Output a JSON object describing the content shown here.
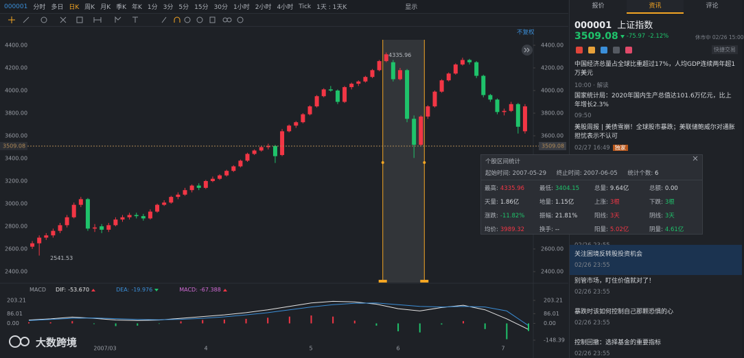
{
  "toolbar": {
    "symbol": "000001",
    "periods": [
      "分时",
      "多日",
      "日K",
      "周K",
      "月K",
      "季K",
      "年K",
      "1分",
      "3分",
      "5分",
      "15分",
      "30分",
      "1小时",
      "2小时",
      "4小时",
      "Tick"
    ],
    "range_select": "1天 : 1天K",
    "display": "显示"
  },
  "chart_data": {
    "type": "candlestick",
    "adjust": "不复权",
    "up_color": "#f23645",
    "down_color": "#1fc36b",
    "candles": [
      [
        2620,
        2670,
        2600,
        2650
      ],
      [
        2650,
        2720,
        2541.53,
        2700
      ],
      [
        2700,
        2740,
        2680,
        2720
      ],
      [
        2720,
        2780,
        2700,
        2760
      ],
      [
        2760,
        2830,
        2740,
        2810
      ],
      [
        2810,
        2900,
        2790,
        2880
      ],
      [
        2880,
        3010,
        2870,
        2990
      ],
      [
        2990,
        3060,
        2970,
        3040
      ],
      [
        3040,
        3050,
        2760,
        2780
      ],
      [
        2780,
        2820,
        2750,
        2790
      ],
      [
        2800,
        2820,
        2740,
        2770
      ],
      [
        2770,
        2830,
        2750,
        2810
      ],
      [
        2810,
        2880,
        2800,
        2860
      ],
      [
        2860,
        2900,
        2840,
        2880
      ],
      [
        2880,
        2920,
        2860,
        2900
      ],
      [
        2900,
        2920,
        2870,
        2890
      ],
      [
        2890,
        2910,
        2850,
        2870
      ],
      [
        2870,
        2950,
        2860,
        2930
      ],
      [
        2930,
        3000,
        2920,
        2990
      ],
      [
        2990,
        3030,
        2980,
        3010
      ],
      [
        3010,
        3070,
        3000,
        3060
      ],
      [
        3060,
        3100,
        3040,
        3080
      ],
      [
        3080,
        3140,
        3070,
        3120
      ],
      [
        3120,
        3170,
        3100,
        3160
      ],
      [
        3160,
        3180,
        3120,
        3140
      ],
      [
        3140,
        3210,
        3130,
        3200
      ],
      [
        3200,
        3240,
        3190,
        3220
      ],
      [
        3220,
        3260,
        3210,
        3250
      ],
      [
        3250,
        3300,
        3240,
        3290
      ],
      [
        3290,
        3340,
        3280,
        3330
      ],
      [
        3330,
        3390,
        3320,
        3380
      ],
      [
        3380,
        3450,
        3370,
        3440
      ],
      [
        3440,
        3480,
        3430,
        3470
      ],
      [
        3470,
        3510,
        3460,
        3500
      ],
      [
        3500,
        3530,
        3480,
        3510
      ],
      [
        3510,
        3520,
        3360,
        3420
      ],
      [
        3430,
        3660,
        3420,
        3640
      ],
      [
        3640,
        3700,
        3630,
        3690
      ],
      [
        3690,
        3730,
        3670,
        3720
      ],
      [
        3720,
        3800,
        3710,
        3790
      ],
      [
        3790,
        3870,
        3780,
        3860
      ],
      [
        3860,
        3960,
        3850,
        3950
      ],
      [
        3950,
        4020,
        3940,
        4010
      ],
      [
        4010,
        4040,
        3990,
        4000
      ],
      [
        4000,
        4010,
        3880,
        3900
      ],
      [
        3900,
        4040,
        3890,
        4030
      ],
      [
        4030,
        4070,
        4010,
        4060
      ],
      [
        4060,
        4090,
        4040,
        4080
      ],
      [
        4080,
        4130,
        4070,
        4120
      ],
      [
        4120,
        4190,
        4110,
        4180
      ],
      [
        4180,
        4270,
        4170,
        4260
      ],
      [
        4260,
        4335.96,
        4250,
        4320
      ],
      [
        4250,
        4270,
        4080,
        4100
      ],
      [
        4100,
        4200,
        4090,
        4180
      ],
      [
        4180,
        4190,
        3720,
        3750
      ],
      [
        3750,
        3780,
        3404.15,
        3520
      ],
      [
        3520,
        3780,
        3510,
        3770
      ],
      [
        3770,
        3870,
        3750,
        3860
      ],
      [
        3860,
        4000,
        3850,
        3990
      ],
      [
        3990,
        4100,
        3980,
        4090
      ],
      [
        4090,
        4160,
        4080,
        4150
      ],
      [
        4150,
        4240,
        4140,
        4230
      ],
      [
        4230,
        4290,
        4220,
        4270
      ],
      [
        4270,
        4280,
        4230,
        4250
      ],
      [
        4250,
        4260,
        4110,
        4130
      ],
      [
        4130,
        4140,
        3940,
        3960
      ],
      [
        3960,
        3970,
        3900,
        3920
      ],
      [
        3920,
        3930,
        3790,
        3810
      ],
      [
        3810,
        3840,
        3780,
        3820
      ],
      [
        3820,
        3900,
        3810,
        3880
      ],
      [
        3880,
        3890,
        3620,
        3680
      ],
      [
        3640,
        3880,
        3620,
        3860
      ]
    ],
    "ylim": [
      2400,
      4400
    ],
    "yticks": [
      {
        "value": 4400,
        "label": "4400.00"
      },
      {
        "value": 4200,
        "label": "4200.00"
      },
      {
        "value": 4000,
        "label": "4000.00"
      },
      {
        "value": 3800,
        "label": "3800.00"
      },
      {
        "value": 3600,
        "label": "3600.00"
      },
      {
        "value": 3400,
        "label": "3400.00"
      },
      {
        "value": 3200,
        "label": "3200.00"
      },
      {
        "value": 3000,
        "label": "3000.00"
      },
      {
        "value": 2800,
        "label": "2800.00"
      },
      {
        "value": 2600,
        "label": "2600.00"
      },
      {
        "value": 2400,
        "label": "2400.00"
      }
    ],
    "x_labels": [
      "2007/03",
      "4",
      "5",
      "6",
      "7"
    ]
  },
  "macd": {
    "type": "line",
    "title": "MACD",
    "ylim": [
      -148.39,
      203.21
    ],
    "yticks": [
      203.21,
      86.01,
      {
        "value": 0,
        "label": "0.00"
      },
      -148.39
    ],
    "series": [
      {
        "name": "DIF:",
        "color": "#e6e6e6",
        "values": [
          30,
          40,
          55,
          45,
          30,
          25,
          30,
          45,
          60,
          75,
          95,
          120,
          150,
          180,
          195,
          190,
          170,
          130,
          110,
          140,
          160,
          120,
          40,
          -53.67
        ],
        "latest_label": "-53.670"
      },
      {
        "name": "DEA:",
        "color": "#3b8fd9",
        "values": [
          25,
          35,
          45,
          48,
          42,
          35,
          32,
          36,
          45,
          58,
          75,
          95,
          120,
          145,
          165,
          178,
          180,
          165,
          150,
          145,
          150,
          145,
          110,
          -19.976
        ],
        "latest_label": "-19.976"
      },
      {
        "name": "MACD:",
        "color": "#d36bd6",
        "values": [
          10,
          10,
          20,
          -6,
          -24,
          -20,
          -4,
          18,
          30,
          34,
          40,
          50,
          60,
          70,
          60,
          24,
          -20,
          -70,
          -80,
          -10,
          20,
          -50,
          -140,
          -67.388
        ],
        "latest_label": "-67.388"
      }
    ]
  },
  "quote": {
    "tabs": [
      "报价",
      "资讯",
      "评论"
    ],
    "code": "000001",
    "name": "上证指数",
    "price": 3509.08,
    "change": -75.97,
    "change_pct": "-2.12%",
    "status": "休市中 02/26 15:00",
    "quick_trade": "快捷交易"
  },
  "news": [
    {
      "title": "中国经济总量占全球比重超过17%，人均GDP连续两年超1万美元",
      "meta": "10:00 · 解读"
    },
    {
      "title": "国家统计局：2020年国内生产总值达101.6万亿元，比上年增长2.3%",
      "meta": "09:50"
    },
    {
      "title": "美股周报 | 美债雪崩！全球股市暴跌；美联储鲍威尔对通胀担忧表示不认可",
      "meta": "02/27 16:49",
      "tag": "独家"
    },
    {
      "meta": "02/26 23:55"
    },
    {
      "title": "关注困境反转股投资机会",
      "meta": "02/26 23:55"
    },
    {
      "title": "别管市场，盯住价值就对了！",
      "meta": "02/26 23:55"
    },
    {
      "title": "暴跌时该如何控制自己那颗恐惧的心",
      "meta": "02/26 23:55"
    },
    {
      "title": "控制回撤：选择基金的重要指标",
      "meta": "02/26 23:55"
    }
  ],
  "stats": {
    "title": "个股区间统计",
    "start_label": "起始时间:",
    "start": "2007-05-29",
    "end_label": "终止时间:",
    "end": "2007-06-05",
    "count_label": "统计个数:",
    "count": 6,
    "rows": [
      [
        [
          "最高:",
          "4335.96"
        ],
        [
          "最低:",
          "3404.15"
        ],
        [
          "总量:",
          "9.64亿"
        ],
        [
          "总额:",
          "0.00"
        ]
      ],
      [
        [
          "天量:",
          "1.86亿"
        ],
        [
          "地量:",
          "1.15亿"
        ],
        [
          "上涨:",
          "3根"
        ],
        [
          "下跌:",
          "3根"
        ]
      ],
      [
        [
          "涨跌:",
          "-11.82%"
        ],
        [
          "振幅:",
          "21.81%"
        ],
        [
          "阳线:",
          "3天"
        ],
        [
          "阴线:",
          "3天"
        ]
      ],
      [
        [
          "均价:",
          "3989.32"
        ],
        [
          "换手:",
          "--"
        ],
        [
          "阳量:",
          "5.02亿"
        ],
        [
          "阴量:",
          "4.61亿"
        ]
      ]
    ]
  },
  "watermark": "大数跨境"
}
